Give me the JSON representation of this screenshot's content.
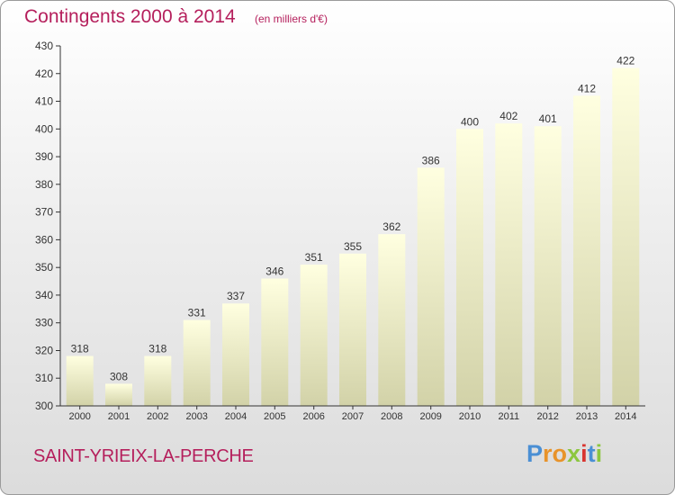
{
  "header": {
    "title": "Contingents 2000 à 2014",
    "subtitle": "(en milliers d'€)"
  },
  "footer": {
    "commune": "SAINT-YRIEIX-LA-PERCHE",
    "logo": "Proxiti"
  },
  "colors": {
    "title": "#b51f5c",
    "bar_top": "#ffffe0",
    "bar_bottom": "#d2d2a8",
    "axis": "#333333"
  },
  "chart_data": {
    "type": "bar",
    "categories": [
      "2000",
      "2001",
      "2002",
      "2003",
      "2004",
      "2005",
      "2006",
      "2007",
      "2008",
      "2009",
      "2010",
      "2011",
      "2012",
      "2013",
      "2014"
    ],
    "values": [
      318,
      308,
      318,
      331,
      337,
      346,
      351,
      355,
      362,
      386,
      400,
      402,
      401,
      412,
      422
    ],
    "title": "Contingents 2000 à 2014",
    "ylim": [
      300,
      430
    ],
    "yticks": [
      300,
      310,
      320,
      330,
      340,
      350,
      360,
      370,
      380,
      390,
      400,
      410,
      420,
      430
    ],
    "grid": false,
    "data_labels": true
  }
}
